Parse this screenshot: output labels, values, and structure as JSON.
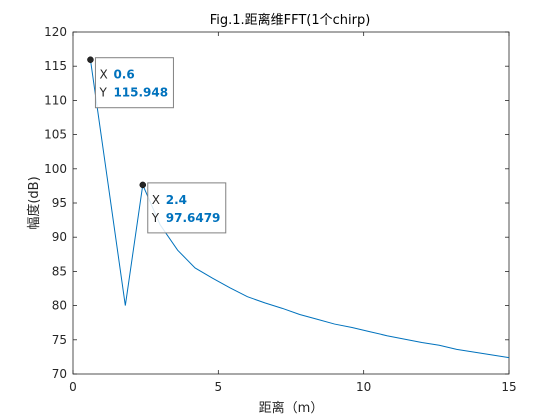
{
  "chart_data": {
    "type": "line",
    "title": "Fig.1.距离维FFT(1个chirp)",
    "xlabel": "距离（m）",
    "ylabel": "幅度(dB)",
    "xlim": [
      0,
      15
    ],
    "ylim": [
      70,
      120
    ],
    "xticks": [
      0,
      5,
      10,
      15
    ],
    "yticks": [
      70,
      75,
      80,
      85,
      90,
      95,
      100,
      105,
      110,
      115,
      120
    ],
    "grid": false,
    "line_color": "#0072bd",
    "series": [
      {
        "x": [
          0.6,
          1.2,
          1.8,
          2.4,
          3.0,
          3.6,
          4.2,
          4.8,
          5.4,
          6.0,
          6.6,
          7.2,
          7.8,
          8.4,
          9.0,
          9.6,
          10.2,
          10.8,
          11.4,
          12.0,
          12.6,
          13.2,
          13.8,
          14.4,
          15.0
        ],
        "y": [
          115.948,
          98.0,
          80.0,
          97.6479,
          91.8,
          88.1,
          85.5,
          84.0,
          82.6,
          81.3,
          80.4,
          79.6,
          78.7,
          78.0,
          77.3,
          76.8,
          76.2,
          75.6,
          75.1,
          74.6,
          74.2,
          73.6,
          73.2,
          72.8,
          72.4
        ]
      }
    ],
    "datatips": [
      {
        "x_label": "X",
        "x_value": "0.6",
        "y_label": "Y",
        "y_value": "115.948",
        "x": 0.6,
        "y": 115.948
      },
      {
        "x_label": "X",
        "x_value": "2.4",
        "y_label": "Y",
        "y_value": "97.6479",
        "x": 2.4,
        "y": 97.6479
      }
    ]
  }
}
